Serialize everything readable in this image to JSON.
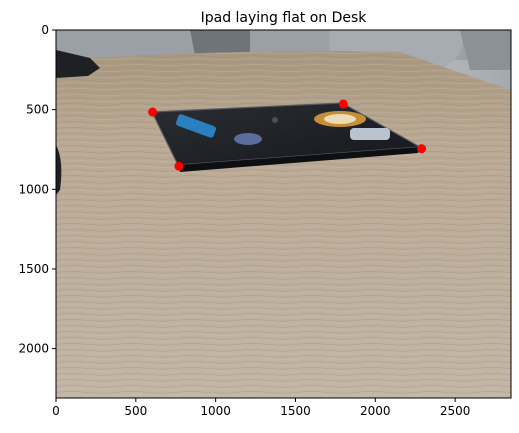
{
  "chart_data": {
    "type": "scatter",
    "title": "Ipad laying flat on Desk",
    "xlabel": "",
    "ylabel": "",
    "xlim": [
      0,
      2850
    ],
    "ylim": [
      2310,
      0
    ],
    "y_inverted": true,
    "x_ticks": [
      "0",
      "500",
      "1000",
      "1500",
      "2000",
      "2500"
    ],
    "x_tick_values": [
      0,
      500,
      1000,
      1500,
      2000,
      2500
    ],
    "y_ticks": [
      "0",
      "500",
      "1000",
      "1500",
      "2000"
    ],
    "y_tick_values": [
      0,
      500,
      1000,
      1500,
      2000
    ],
    "background_image": "photograph of a black iPad with stickers lying flat on a wooden desk",
    "marker_color": "#ff0000",
    "points": [
      {
        "x": 605,
        "y": 515
      },
      {
        "x": 1800,
        "y": 465
      },
      {
        "x": 2290,
        "y": 745
      },
      {
        "x": 770,
        "y": 855
      }
    ]
  }
}
